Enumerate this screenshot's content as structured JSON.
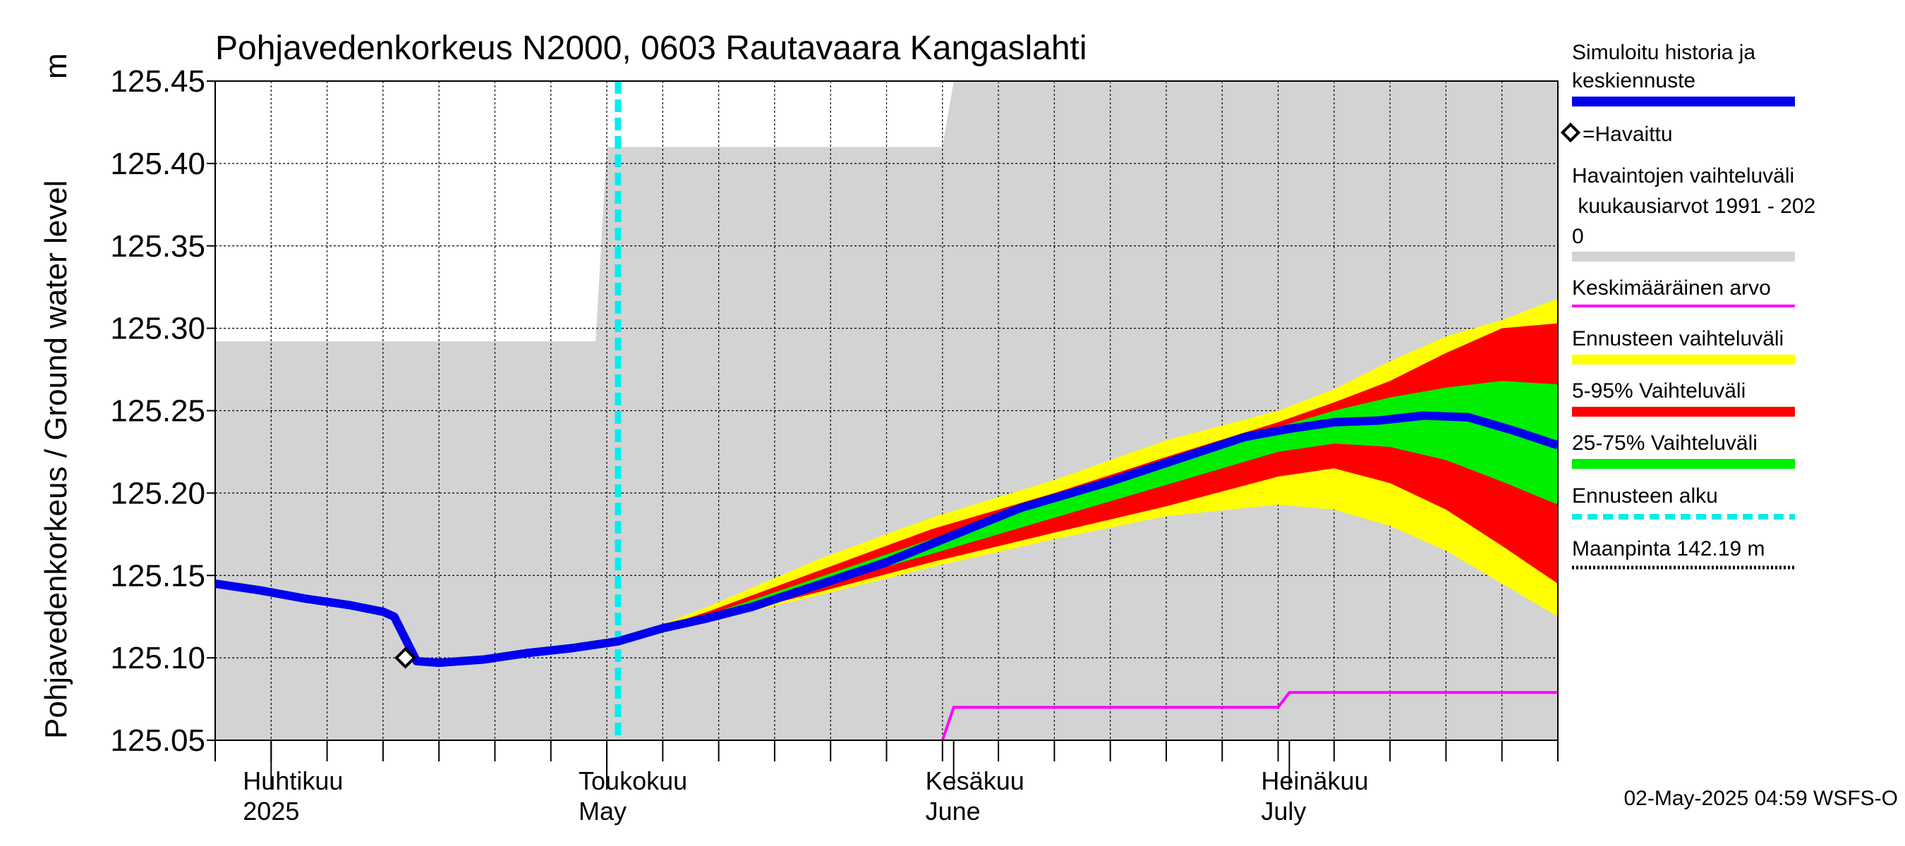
{
  "chart_data": {
    "type": "area",
    "title": "Pohjavedenkorkeus N2000, 0603 Rautavaara Kangaslahti",
    "ylabel": "Pohjavedenkorkeus / Ground water level",
    "yunit": "m",
    "ylim": [
      125.05,
      125.45
    ],
    "yticks": [
      "125.05",
      "125.10",
      "125.15",
      "125.20",
      "125.25",
      "125.30",
      "125.35",
      "125.40",
      "125.45"
    ],
    "xlim": [
      "2025-03-27",
      "2025-07-25"
    ],
    "grid": true,
    "months": [
      {
        "date": "2025-04-01",
        "label1": "Huhtikuu",
        "label2": "2025"
      },
      {
        "date": "2025-05-01",
        "label1": "Toukokuu",
        "label2": "May"
      },
      {
        "date": "2025-06-01",
        "label1": "Kesäkuu",
        "label2": "June"
      },
      {
        "date": "2025-07-01",
        "label1": "Heinäkuu",
        "label2": "July"
      }
    ],
    "forecast_start": "2025-05-02",
    "observed": [
      {
        "date": "2025-04-13",
        "value": 125.1
      }
    ],
    "simulated": [
      {
        "date": "2025-03-27",
        "value": 125.145
      },
      {
        "date": "2025-03-31",
        "value": 125.141
      },
      {
        "date": "2025-04-04",
        "value": 125.136
      },
      {
        "date": "2025-04-08",
        "value": 125.132
      },
      {
        "date": "2025-04-11",
        "value": 125.128
      },
      {
        "date": "2025-04-12",
        "value": 125.125
      },
      {
        "date": "2025-04-14",
        "value": 125.098
      },
      {
        "date": "2025-04-16",
        "value": 125.097
      },
      {
        "date": "2025-04-20",
        "value": 125.099
      },
      {
        "date": "2025-04-24",
        "value": 125.103
      },
      {
        "date": "2025-04-28",
        "value": 125.106
      },
      {
        "date": "2025-05-02",
        "value": 125.11
      },
      {
        "date": "2025-05-06",
        "value": 125.118
      },
      {
        "date": "2025-05-10",
        "value": 125.124
      },
      {
        "date": "2025-05-14",
        "value": 125.131
      },
      {
        "date": "2025-05-18",
        "value": 125.14
      },
      {
        "date": "2025-05-22",
        "value": 125.149
      },
      {
        "date": "2025-05-26",
        "value": 125.158
      },
      {
        "date": "2025-05-30",
        "value": 125.169
      },
      {
        "date": "2025-06-03",
        "value": 125.18
      },
      {
        "date": "2025-06-07",
        "value": 125.191
      },
      {
        "date": "2025-06-11",
        "value": 125.199
      },
      {
        "date": "2025-06-15",
        "value": 125.207
      },
      {
        "date": "2025-06-19",
        "value": 125.216
      },
      {
        "date": "2025-06-23",
        "value": 125.225
      },
      {
        "date": "2025-06-27",
        "value": 125.234
      },
      {
        "date": "2025-07-01",
        "value": 125.239
      },
      {
        "date": "2025-07-05",
        "value": 125.243
      },
      {
        "date": "2025-07-09",
        "value": 125.244
      },
      {
        "date": "2025-07-13",
        "value": 125.247
      },
      {
        "date": "2025-07-17",
        "value": 125.246
      },
      {
        "date": "2025-07-21",
        "value": 125.238
      },
      {
        "date": "2025-07-25",
        "value": 125.229
      }
    ],
    "historical_range": [
      {
        "date": "2025-03-27",
        "min": 125.05,
        "max": 125.292
      },
      {
        "date": "2025-04-30",
        "min": 125.05,
        "max": 125.292
      },
      {
        "date": "2025-05-01",
        "min": 125.05,
        "max": 125.41
      },
      {
        "date": "2025-05-31",
        "min": 125.05,
        "max": 125.41
      },
      {
        "date": "2025-06-01",
        "min": 125.05,
        "max": 125.45
      },
      {
        "date": "2025-07-25",
        "min": 125.05,
        "max": 125.45
      }
    ],
    "mean_value": [
      {
        "date": "2025-05-31",
        "value": 125.05
      },
      {
        "date": "2025-06-01",
        "value": 125.07
      },
      {
        "date": "2025-06-30",
        "value": 125.07
      },
      {
        "date": "2025-07-01",
        "value": 125.079
      },
      {
        "date": "2025-07-25",
        "value": 125.079
      }
    ],
    "forecast_range": [
      {
        "date": "2025-05-02",
        "low": 125.11,
        "high": 125.11
      },
      {
        "date": "2025-05-10",
        "low": 125.122,
        "high": 125.131
      },
      {
        "date": "2025-05-20",
        "low": 125.138,
        "high": 125.16
      },
      {
        "date": "2025-05-30",
        "low": 125.155,
        "high": 125.185
      },
      {
        "date": "2025-06-10",
        "low": 125.172,
        "high": 125.208
      },
      {
        "date": "2025-06-20",
        "low": 125.186,
        "high": 125.232
      },
      {
        "date": "2025-06-30",
        "low": 125.193,
        "high": 125.25
      },
      {
        "date": "2025-07-05",
        "low": 125.19,
        "high": 125.263
      },
      {
        "date": "2025-07-10",
        "low": 125.18,
        "high": 125.28
      },
      {
        "date": "2025-07-15",
        "low": 125.165,
        "high": 125.295
      },
      {
        "date": "2025-07-20",
        "low": 125.145,
        "high": 125.305
      },
      {
        "date": "2025-07-25",
        "low": 125.125,
        "high": 125.318
      }
    ],
    "p5_95": [
      {
        "date": "2025-05-02",
        "low": 125.11,
        "high": 125.11
      },
      {
        "date": "2025-05-10",
        "low": 125.123,
        "high": 125.128
      },
      {
        "date": "2025-05-20",
        "low": 125.14,
        "high": 125.153
      },
      {
        "date": "2025-05-30",
        "low": 125.158,
        "high": 125.178
      },
      {
        "date": "2025-06-10",
        "low": 125.176,
        "high": 125.2
      },
      {
        "date": "2025-06-20",
        "low": 125.192,
        "high": 125.222
      },
      {
        "date": "2025-06-30",
        "low": 125.21,
        "high": 125.243
      },
      {
        "date": "2025-07-05",
        "low": 125.215,
        "high": 125.255
      },
      {
        "date": "2025-07-10",
        "low": 125.206,
        "high": 125.268
      },
      {
        "date": "2025-07-15",
        "low": 125.19,
        "high": 125.285
      },
      {
        "date": "2025-07-20",
        "low": 125.168,
        "high": 125.3
      },
      {
        "date": "2025-07-25",
        "low": 125.145,
        "high": 125.303
      }
    ],
    "p25_75": [
      {
        "date": "2025-05-02",
        "low": 125.11,
        "high": 125.11
      },
      {
        "date": "2025-05-10",
        "low": 125.124,
        "high": 125.126
      },
      {
        "date": "2025-05-20",
        "low": 125.144,
        "high": 125.149
      },
      {
        "date": "2025-05-30",
        "low": 125.163,
        "high": 125.172
      },
      {
        "date": "2025-06-10",
        "low": 125.185,
        "high": 125.196
      },
      {
        "date": "2025-06-20",
        "low": 125.205,
        "high": 125.218
      },
      {
        "date": "2025-06-30",
        "low": 125.225,
        "high": 125.24
      },
      {
        "date": "2025-07-05",
        "low": 125.23,
        "high": 125.25
      },
      {
        "date": "2025-07-10",
        "low": 125.228,
        "high": 125.258
      },
      {
        "date": "2025-07-15",
        "low": 125.22,
        "high": 125.264
      },
      {
        "date": "2025-07-20",
        "low": 125.207,
        "high": 125.268
      },
      {
        "date": "2025-07-25",
        "low": 125.193,
        "high": 125.266
      }
    ],
    "legend": {
      "placement": "right",
      "simulated_lines": [
        "Simuloitu historia ja",
        "keskiennuste"
      ],
      "observed": "=Havaittu",
      "range_lines": [
        "Havaintojen vaihteluväli",
        " kuukausiarvot 1991 - 202",
        "0"
      ],
      "mean": "Keskimääräinen arvo",
      "forecast_range": "Ennusteen vaihteluväli",
      "p5_95": "5-95% Vaihteluväli",
      "p25_75": "25-75% Vaihteluväli",
      "forecast_start": "Ennusteen alku",
      "ground": "Maanpinta 142.19 m"
    },
    "timestamp": "02-May-2025 04:59 WSFS-O"
  },
  "colors": {
    "simulated": "#0000ee",
    "historical_range": "#d3d3d3",
    "mean": "#ff00ff",
    "forecast_range": "#ffff00",
    "p5_95": "#ff0000",
    "p25_75": "#00ee00",
    "forecast_start": "#00eeee",
    "grid": "#000000"
  }
}
